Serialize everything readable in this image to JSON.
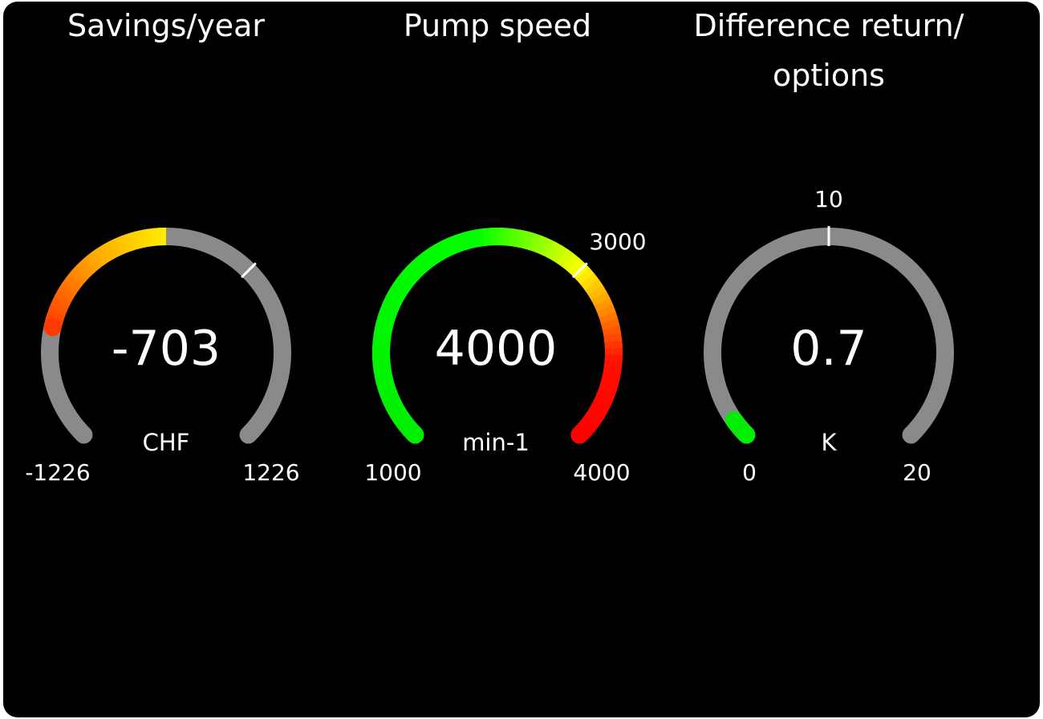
{
  "colors": {
    "background": "#000000",
    "track": "#8a8a8a",
    "tick": "#ffffff",
    "text": "#ffffff"
  },
  "gauges": [
    {
      "title_lines": [
        "Savings/year"
      ],
      "value": -703,
      "value_label": "-703",
      "unit": "CHF",
      "min": -1226,
      "max": 1226,
      "min_label": "-1226",
      "max_label": "1226",
      "fill_from": 0,
      "ticks": [
        {
          "value": 409,
          "label": ""
        }
      ],
      "color_stops": [
        {
          "value": -703,
          "color": "#ff3a00"
        },
        {
          "value": -350,
          "color": "#ffa500"
        },
        {
          "value": 0,
          "color": "#ffee00"
        }
      ]
    },
    {
      "title_lines": [
        "Pump speed"
      ],
      "value": 4000,
      "value_label": "4000",
      "unit": "min-1",
      "min": 1000,
      "max": 4000,
      "min_label": "1000",
      "max_label": "4000",
      "fill_from": 1000,
      "ticks": [
        {
          "value": 3000,
          "label": "3000"
        }
      ],
      "color_stops": [
        {
          "value": 1000,
          "color": "#00ee00"
        },
        {
          "value": 2400,
          "color": "#00ff00"
        },
        {
          "value": 3000,
          "color": "#ffff00"
        },
        {
          "value": 3550,
          "color": "#ff1000"
        },
        {
          "value": 4000,
          "color": "#ff0000"
        }
      ]
    },
    {
      "title_lines": [
        "Difference return/",
        "options"
      ],
      "value": 0.7,
      "value_label": "0.7",
      "unit": "K",
      "min": 0,
      "max": 20,
      "min_label": "0",
      "max_label": "20",
      "fill_from": 0,
      "ticks": [
        {
          "value": 10,
          "label": "10"
        }
      ],
      "color_stops": [
        {
          "value": 0,
          "color": "#00ee00"
        },
        {
          "value": 20,
          "color": "#00ee00"
        }
      ]
    }
  ]
}
